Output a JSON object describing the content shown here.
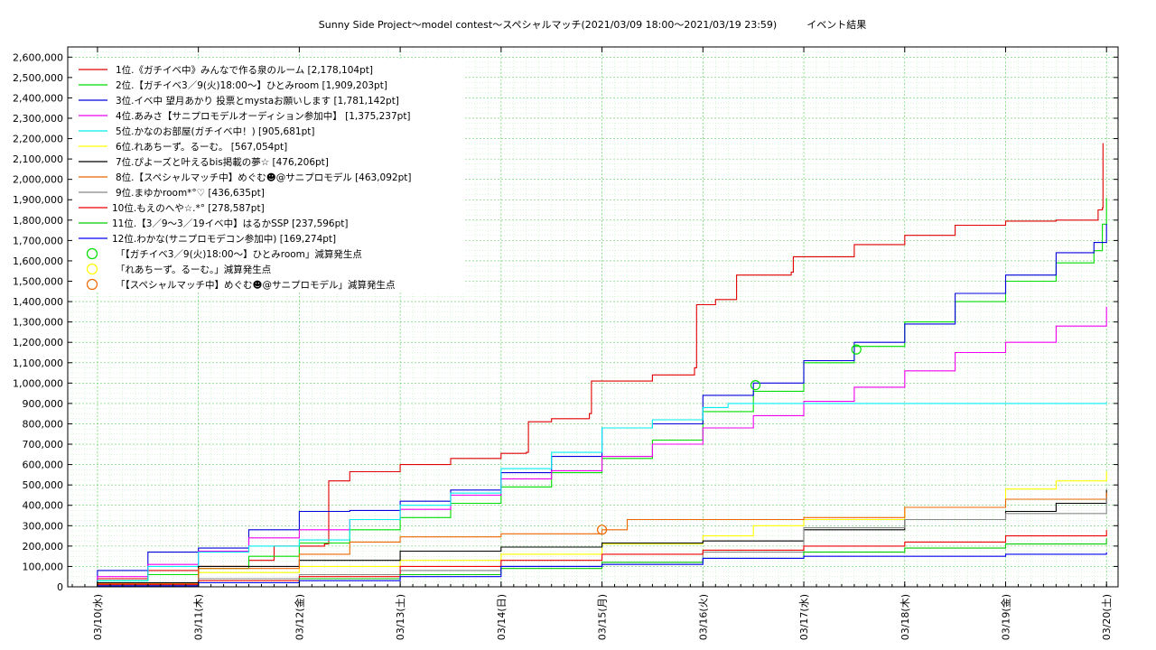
{
  "chart_data": {
    "type": "line",
    "title": "Sunny Side Project～model contest～スペシャルマッチ(2021/03/09 18:00～2021/03/19 23:59)　　　イベント結果",
    "xlabel": "",
    "ylabel": "",
    "ylim": [
      0,
      2650000
    ],
    "xlim": [
      "2021-03-09T18:00",
      "2021-03-20T00:10"
    ],
    "grid": true,
    "legend_position": "top-left",
    "y_ticks": [
      "0",
      "100,000",
      "200,000",
      "300,000",
      "400,000",
      "500,000",
      "600,000",
      "700,000",
      "800,000",
      "900,000",
      "1,000,000",
      "1,100,000",
      "1,200,000",
      "1,300,000",
      "1,400,000",
      "1,500,000",
      "1,600,000",
      "1,700,000",
      "1,800,000",
      "1,900,000",
      "2,000,000",
      "2,100,000",
      "2,200,000",
      "2,300,000",
      "2,400,000",
      "2,500,000",
      "2,600,000"
    ],
    "x_ticks": [
      {
        "date": "2021-03-10T00:00",
        "label": "03/10(水)"
      },
      {
        "date": "2021-03-11T00:00",
        "label": "03/11(木)"
      },
      {
        "date": "2021-03-12T00:00",
        "label": "03/12(金)"
      },
      {
        "date": "2021-03-13T00:00",
        "label": "03/13(土)"
      },
      {
        "date": "2021-03-14T00:00",
        "label": "03/14(日)"
      },
      {
        "date": "2021-03-15T00:00",
        "label": "03/15(月)"
      },
      {
        "date": "2021-03-16T00:00",
        "label": "03/16(火)"
      },
      {
        "date": "2021-03-17T00:00",
        "label": "03/17(水)"
      },
      {
        "date": "2021-03-18T00:00",
        "label": "03/18(木)"
      },
      {
        "date": "2021-03-19T00:00",
        "label": "03/19(金)"
      },
      {
        "date": "2021-03-20T00:00",
        "label": "03/20(土)"
      }
    ],
    "series": [
      {
        "name": "1位.《ガチイベ中》みんなで作る泉のルーム [2,178,104pt]",
        "color": "#e00000",
        "points": [
          [
            "2021-03-09T18:00",
            0
          ],
          [
            "2021-03-10T00:00",
            40000
          ],
          [
            "2021-03-10T12:00",
            80000
          ],
          [
            "2021-03-11T00:00",
            100000
          ],
          [
            "2021-03-11T12:00",
            130000
          ],
          [
            "2021-03-11T18:00",
            200000
          ],
          [
            "2021-03-12T06:00",
            210000
          ],
          [
            "2021-03-12T07:00",
            520000
          ],
          [
            "2021-03-12T12:00",
            565000
          ],
          [
            "2021-03-13T00:00",
            600000
          ],
          [
            "2021-03-13T12:00",
            630000
          ],
          [
            "2021-03-14T00:00",
            655000
          ],
          [
            "2021-03-14T06:00",
            660000
          ],
          [
            "2021-03-14T06:30",
            810000
          ],
          [
            "2021-03-14T12:00",
            825000
          ],
          [
            "2021-03-14T21:00",
            850000
          ],
          [
            "2021-03-14T21:30",
            1010000
          ],
          [
            "2021-03-15T12:00",
            1040000
          ],
          [
            "2021-03-15T22:00",
            1075000
          ],
          [
            "2021-03-15T22:30",
            1385000
          ],
          [
            "2021-03-16T03:00",
            1410000
          ],
          [
            "2021-03-16T08:00",
            1530000
          ],
          [
            "2021-03-16T21:00",
            1545000
          ],
          [
            "2021-03-16T21:30",
            1620000
          ],
          [
            "2021-03-17T12:00",
            1680000
          ],
          [
            "2021-03-18T00:00",
            1725000
          ],
          [
            "2021-03-18T12:00",
            1775000
          ],
          [
            "2021-03-19T00:00",
            1795000
          ],
          [
            "2021-03-19T12:00",
            1800000
          ],
          [
            "2021-03-19T22:00",
            1850000
          ],
          [
            "2021-03-19T23:00",
            1860000
          ],
          [
            "2021-03-19T23:10",
            2178104
          ]
        ]
      },
      {
        "name": "2位.【ガチイベ3／9(火)18:00～】ひとみroom [1,909,203pt]",
        "color": "#00dd00",
        "points": [
          [
            "2021-03-09T18:00",
            0
          ],
          [
            "2021-03-10T00:00",
            30000
          ],
          [
            "2021-03-10T12:00",
            60000
          ],
          [
            "2021-03-11T00:00",
            90000
          ],
          [
            "2021-03-11T12:00",
            150000
          ],
          [
            "2021-03-12T00:00",
            215000
          ],
          [
            "2021-03-12T12:00",
            280000
          ],
          [
            "2021-03-13T00:00",
            340000
          ],
          [
            "2021-03-13T12:00",
            410000
          ],
          [
            "2021-03-14T00:00",
            490000
          ],
          [
            "2021-03-14T12:00",
            560000
          ],
          [
            "2021-03-15T00:00",
            630000
          ],
          [
            "2021-03-15T12:00",
            720000
          ],
          [
            "2021-03-16T00:00",
            860000
          ],
          [
            "2021-03-16T12:00",
            960000
          ],
          [
            "2021-03-17T00:00",
            1100000
          ],
          [
            "2021-03-17T12:00",
            1180000
          ],
          [
            "2021-03-18T00:00",
            1300000
          ],
          [
            "2021-03-18T12:00",
            1400000
          ],
          [
            "2021-03-19T00:00",
            1500000
          ],
          [
            "2021-03-19T12:00",
            1590000
          ],
          [
            "2021-03-19T21:00",
            1650000
          ],
          [
            "2021-03-19T23:00",
            1780000
          ],
          [
            "2021-03-20T00:00",
            1909203
          ]
        ]
      },
      {
        "name": "3位.イベ中 望月あかり 投票とmystaお願いします [1,781,142pt]",
        "color": "#0000dd",
        "points": [
          [
            "2021-03-09T18:00",
            0
          ],
          [
            "2021-03-10T00:00",
            80000
          ],
          [
            "2021-03-10T12:00",
            170000
          ],
          [
            "2021-03-11T00:00",
            190000
          ],
          [
            "2021-03-11T12:00",
            280000
          ],
          [
            "2021-03-12T00:00",
            370000
          ],
          [
            "2021-03-12T12:00",
            375000
          ],
          [
            "2021-03-13T00:00",
            420000
          ],
          [
            "2021-03-13T12:00",
            475000
          ],
          [
            "2021-03-14T00:00",
            560000
          ],
          [
            "2021-03-14T12:00",
            640000
          ],
          [
            "2021-03-15T00:00",
            780000
          ],
          [
            "2021-03-15T12:00",
            800000
          ],
          [
            "2021-03-16T00:00",
            940000
          ],
          [
            "2021-03-16T12:00",
            1000000
          ],
          [
            "2021-03-17T00:00",
            1110000
          ],
          [
            "2021-03-17T12:00",
            1200000
          ],
          [
            "2021-03-18T00:00",
            1290000
          ],
          [
            "2021-03-18T12:00",
            1440000
          ],
          [
            "2021-03-19T00:00",
            1530000
          ],
          [
            "2021-03-19T12:00",
            1640000
          ],
          [
            "2021-03-19T21:00",
            1690000
          ],
          [
            "2021-03-19T23:00",
            1690000
          ],
          [
            "2021-03-20T00:00",
            1781142
          ]
        ]
      },
      {
        "name": "4位.あみさ【サニプロモデルオーディション参加中】 [1,375,237pt]",
        "color": "#ee00ee",
        "points": [
          [
            "2021-03-09T18:00",
            0
          ],
          [
            "2021-03-10T00:00",
            50000
          ],
          [
            "2021-03-10T12:00",
            110000
          ],
          [
            "2021-03-11T00:00",
            175000
          ],
          [
            "2021-03-11T12:00",
            240000
          ],
          [
            "2021-03-12T00:00",
            280000
          ],
          [
            "2021-03-12T12:00",
            330000
          ],
          [
            "2021-03-13T00:00",
            380000
          ],
          [
            "2021-03-13T12:00",
            450000
          ],
          [
            "2021-03-14T00:00",
            530000
          ],
          [
            "2021-03-14T12:00",
            570000
          ],
          [
            "2021-03-15T00:00",
            640000
          ],
          [
            "2021-03-15T12:00",
            700000
          ],
          [
            "2021-03-16T00:00",
            780000
          ],
          [
            "2021-03-16T12:00",
            840000
          ],
          [
            "2021-03-17T00:00",
            910000
          ],
          [
            "2021-03-17T12:00",
            980000
          ],
          [
            "2021-03-18T00:00",
            1060000
          ],
          [
            "2021-03-18T12:00",
            1150000
          ],
          [
            "2021-03-19T00:00",
            1200000
          ],
          [
            "2021-03-19T12:00",
            1280000
          ],
          [
            "2021-03-20T00:00",
            1375237
          ]
        ]
      },
      {
        "name": "5位.かなのお部屋(ガチイベ中！) [905,681pt]",
        "color": "#00eeee",
        "points": [
          [
            "2021-03-09T18:00",
            0
          ],
          [
            "2021-03-10T00:00",
            30000
          ],
          [
            "2021-03-10T12:00",
            100000
          ],
          [
            "2021-03-11T00:00",
            170000
          ],
          [
            "2021-03-11T12:00",
            200000
          ],
          [
            "2021-03-12T00:00",
            230000
          ],
          [
            "2021-03-12T12:00",
            330000
          ],
          [
            "2021-03-13T00:00",
            400000
          ],
          [
            "2021-03-13T12:00",
            460000
          ],
          [
            "2021-03-14T00:00",
            580000
          ],
          [
            "2021-03-14T12:00",
            660000
          ],
          [
            "2021-03-15T00:00",
            780000
          ],
          [
            "2021-03-15T12:00",
            820000
          ],
          [
            "2021-03-16T00:00",
            880000
          ],
          [
            "2021-03-16T06:00",
            900000
          ],
          [
            "2021-03-20T00:00",
            905681
          ]
        ]
      },
      {
        "name": "6位.れあちーず。るーむ。 [567,054pt]",
        "color": "#ffff00",
        "points": [
          [
            "2021-03-09T18:00",
            0
          ],
          [
            "2021-03-10T00:00",
            20000
          ],
          [
            "2021-03-11T00:00",
            70000
          ],
          [
            "2021-03-12T00:00",
            100000
          ],
          [
            "2021-03-13T00:00",
            130000
          ],
          [
            "2021-03-14T00:00",
            160000
          ],
          [
            "2021-03-15T00:00",
            210000
          ],
          [
            "2021-03-16T00:00",
            250000
          ],
          [
            "2021-03-16T12:00",
            300000
          ],
          [
            "2021-03-17T00:00",
            330000
          ],
          [
            "2021-03-18T00:00",
            390000
          ],
          [
            "2021-03-19T00:00",
            480000
          ],
          [
            "2021-03-19T12:00",
            520000
          ],
          [
            "2021-03-20T00:00",
            567054
          ]
        ]
      },
      {
        "name": "7位.ぴよーズと叶えるbis掲載の夢☆ [476,206pt]",
        "color": "#000000",
        "points": [
          [
            "2021-03-09T18:00",
            0
          ],
          [
            "2021-03-10T00:00",
            20000
          ],
          [
            "2021-03-11T00:00",
            100000
          ],
          [
            "2021-03-12T00:00",
            130000
          ],
          [
            "2021-03-13T00:00",
            175000
          ],
          [
            "2021-03-14T00:00",
            195000
          ],
          [
            "2021-03-15T00:00",
            215000
          ],
          [
            "2021-03-16T00:00",
            225000
          ],
          [
            "2021-03-17T00:00",
            280000
          ],
          [
            "2021-03-18T00:00",
            330000
          ],
          [
            "2021-03-19T00:00",
            370000
          ],
          [
            "2021-03-19T12:00",
            410000
          ],
          [
            "2021-03-20T00:00",
            476206
          ]
        ]
      },
      {
        "name": "8位.【スペシャルマッチ中】めぐむ☻@サニプロモデル [463,092pt]",
        "color": "#ee6600",
        "points": [
          [
            "2021-03-09T18:00",
            0
          ],
          [
            "2021-03-10T00:00",
            15000
          ],
          [
            "2021-03-11T00:00",
            90000
          ],
          [
            "2021-03-12T00:00",
            160000
          ],
          [
            "2021-03-12T12:00",
            220000
          ],
          [
            "2021-03-13T00:00",
            245000
          ],
          [
            "2021-03-14T00:00",
            260000
          ],
          [
            "2021-03-15T00:00",
            280000
          ],
          [
            "2021-03-15T06:00",
            330000
          ],
          [
            "2021-03-17T00:00",
            340000
          ],
          [
            "2021-03-18T00:00",
            390000
          ],
          [
            "2021-03-19T00:00",
            430000
          ],
          [
            "2021-03-20T00:00",
            463092
          ]
        ]
      },
      {
        "name": "9位.まゆかroom*°♡ [436,635pt]",
        "color": "#888888",
        "points": [
          [
            "2021-03-09T18:00",
            0
          ],
          [
            "2021-03-10T00:00",
            10000
          ],
          [
            "2021-03-11T00:00",
            40000
          ],
          [
            "2021-03-12T00:00",
            60000
          ],
          [
            "2021-03-13T00:00",
            80000
          ],
          [
            "2021-03-14T00:00",
            100000
          ],
          [
            "2021-03-15T00:00",
            120000
          ],
          [
            "2021-03-16T00:00",
            170000
          ],
          [
            "2021-03-17T00:00",
            290000
          ],
          [
            "2021-03-18T00:00",
            330000
          ],
          [
            "2021-03-19T00:00",
            360000
          ],
          [
            "2021-03-20T00:00",
            436635
          ]
        ]
      },
      {
        "name": "10位.もえのへや☆.*° [278,587pt]",
        "color": "#ee0000",
        "points": [
          [
            "2021-03-09T18:00",
            0
          ],
          [
            "2021-03-10T00:00",
            10000
          ],
          [
            "2021-03-11T00:00",
            30000
          ],
          [
            "2021-03-12T00:00",
            50000
          ],
          [
            "2021-03-13T00:00",
            100000
          ],
          [
            "2021-03-14T00:00",
            130000
          ],
          [
            "2021-03-15T00:00",
            160000
          ],
          [
            "2021-03-16T00:00",
            180000
          ],
          [
            "2021-03-17T00:00",
            200000
          ],
          [
            "2021-03-18T00:00",
            220000
          ],
          [
            "2021-03-19T00:00",
            250000
          ],
          [
            "2021-03-20T00:00",
            278587
          ]
        ]
      },
      {
        "name": "11位.【3／9～3／19イベ中】はるかSSP [237,596pt]",
        "color": "#00cc00",
        "points": [
          [
            "2021-03-09T18:00",
            0
          ],
          [
            "2021-03-10T00:00",
            5000
          ],
          [
            "2021-03-11T00:00",
            20000
          ],
          [
            "2021-03-12T00:00",
            40000
          ],
          [
            "2021-03-13T00:00",
            60000
          ],
          [
            "2021-03-14T00:00",
            90000
          ],
          [
            "2021-03-15T00:00",
            120000
          ],
          [
            "2021-03-16T00:00",
            140000
          ],
          [
            "2021-03-17T00:00",
            170000
          ],
          [
            "2021-03-18T00:00",
            190000
          ],
          [
            "2021-03-19T00:00",
            210000
          ],
          [
            "2021-03-20T00:00",
            237596
          ]
        ]
      },
      {
        "name": "12位.わかな(サニプロモデコン参加中) [169,274pt]",
        "color": "#0000ee",
        "points": [
          [
            "2021-03-09T18:00",
            0
          ],
          [
            "2021-03-10T00:00",
            5000
          ],
          [
            "2021-03-11T00:00",
            20000
          ],
          [
            "2021-03-12T00:00",
            30000
          ],
          [
            "2021-03-13T00:00",
            50000
          ],
          [
            "2021-03-14T00:00",
            100000
          ],
          [
            "2021-03-15T00:00",
            110000
          ],
          [
            "2021-03-16T00:00",
            140000
          ],
          [
            "2021-03-17T00:00",
            150000
          ],
          [
            "2021-03-18T00:00",
            150000
          ],
          [
            "2021-03-19T00:00",
            160000
          ],
          [
            "2021-03-20T00:00",
            169274
          ]
        ]
      }
    ],
    "markers": [
      {
        "name": "「【ガチイベ3／9(火)18:00～】ひとみroom」減算発生点",
        "color": "#00dd00",
        "points": [
          [
            "2021-03-16T12:30",
            990000
          ],
          [
            "2021-03-17T12:30",
            1165000
          ]
        ]
      },
      {
        "name": "「れあちーず。るーむ。」減算発生点",
        "color": "#ffff00",
        "points": []
      },
      {
        "name": "「【スペシャルマッチ中】めぐむ☻@サニプロモデル」減算発生点",
        "color": "#ee6600",
        "points": [
          [
            "2021-03-15T00:00",
            280000
          ]
        ]
      }
    ]
  }
}
